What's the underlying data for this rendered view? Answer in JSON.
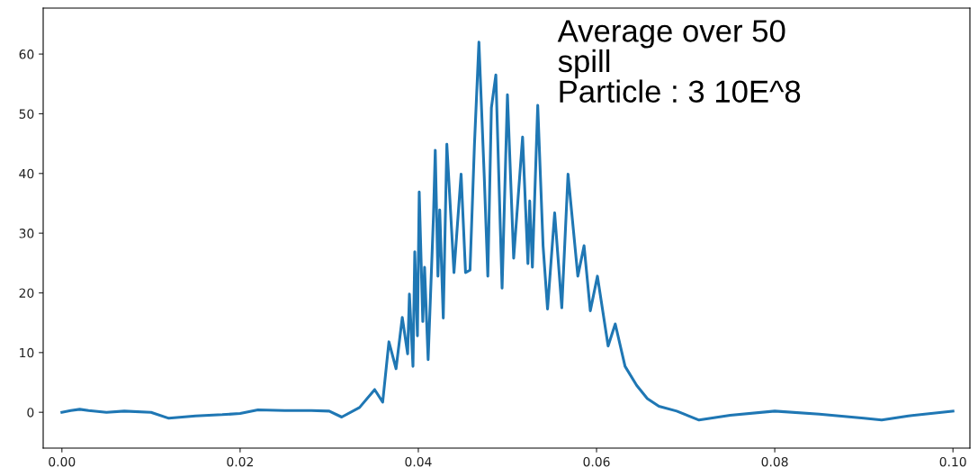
{
  "chart_data": {
    "type": "line",
    "color": "#1f77b4",
    "line_style": "solid",
    "marker": "none",
    "grid": false,
    "x": [
      0.0,
      0.001,
      0.002,
      0.003,
      0.005,
      0.007,
      0.01,
      0.012,
      0.015,
      0.018,
      0.02,
      0.022,
      0.025,
      0.028,
      0.03,
      0.0314,
      0.0334,
      0.0351,
      0.036,
      0.0367,
      0.0375,
      0.0382,
      0.0388,
      0.039,
      0.0394,
      0.0396,
      0.0399,
      0.0401,
      0.0405,
      0.0407,
      0.0411,
      0.0417,
      0.0419,
      0.0422,
      0.0424,
      0.0428,
      0.0432,
      0.044,
      0.0448,
      0.0453,
      0.0458,
      0.0463,
      0.0468,
      0.0474,
      0.0478,
      0.0482,
      0.0487,
      0.0494,
      0.05,
      0.0507,
      0.0517,
      0.0523,
      0.0525,
      0.0528,
      0.0534,
      0.054,
      0.0545,
      0.0553,
      0.0561,
      0.0568,
      0.0579,
      0.0586,
      0.0593,
      0.0601,
      0.0613,
      0.0621,
      0.0632,
      0.0645,
      0.0657,
      0.067,
      0.069,
      0.0715,
      0.075,
      0.08,
      0.085,
      0.09,
      0.092,
      0.095,
      0.1
    ],
    "values": [
      0.0,
      0.3,
      0.5,
      0.3,
      0.0,
      0.2,
      0.0,
      -1.0,
      -0.6,
      -0.4,
      -0.2,
      0.4,
      0.3,
      0.3,
      0.2,
      -0.8,
      0.8,
      3.8,
      1.7,
      11.8,
      7.3,
      15.9,
      9.8,
      19.8,
      7.7,
      26.9,
      12.8,
      36.9,
      15.2,
      24.3,
      8.8,
      32.9,
      43.9,
      22.8,
      33.9,
      15.8,
      44.9,
      23.4,
      39.9,
      23.4,
      23.8,
      44.9,
      62,
      39.4,
      22.8,
      51,
      56.5,
      20.8,
      53.2,
      25.8,
      46.1,
      24.9,
      35.4,
      24.3,
      51.4,
      27.9,
      17.3,
      33.4,
      17.5,
      39.9,
      22.8,
      27.9,
      17.0,
      22.8,
      11.1,
      14.8,
      7.7,
      4.5,
      2.3,
      1.0,
      0.2,
      -1.3,
      -0.5,
      0.2,
      -0.3,
      -1.0,
      -1.3,
      -0.6,
      0.2
    ],
    "xlim": [
      -0.0021,
      0.1019
    ],
    "ylim": [
      -6,
      67.7
    ],
    "xticks": [
      {
        "value": 0.0,
        "label": "0.00"
      },
      {
        "value": 0.02,
        "label": "0.02"
      },
      {
        "value": 0.04,
        "label": "0.04"
      },
      {
        "value": 0.06,
        "label": "0.06"
      },
      {
        "value": 0.08,
        "label": "0.08"
      },
      {
        "value": 0.1,
        "label": "0.10"
      }
    ],
    "yticks": [
      0,
      10,
      20,
      30,
      40,
      50,
      60
    ],
    "annotations": [
      "Average over 50\nspill\nParticle : 3 10E^8"
    ]
  }
}
